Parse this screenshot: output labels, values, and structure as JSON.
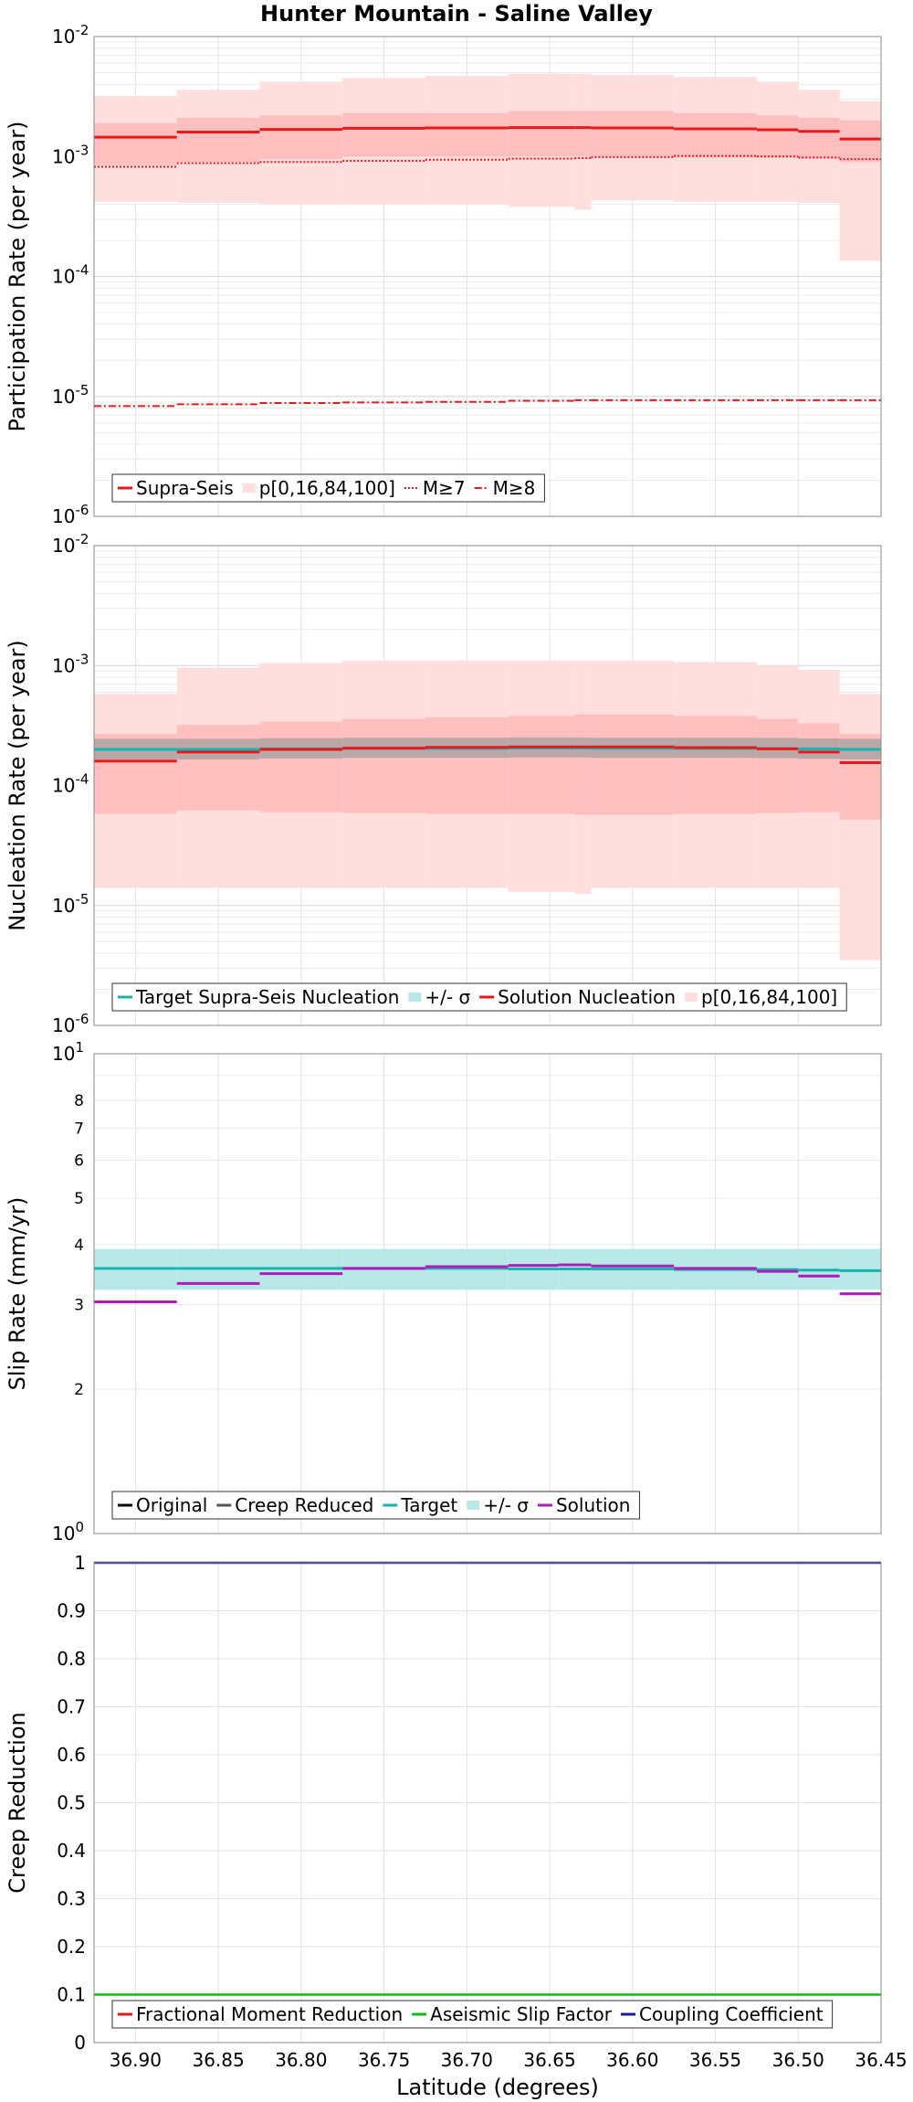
{
  "title": "Hunter Mountain - Saline Valley",
  "xlabel": "Latitude (degrees)",
  "x_ticks": [
    "36.90",
    "36.85",
    "36.80",
    "36.75",
    "36.70",
    "36.65",
    "36.60",
    "36.55",
    "36.50",
    "36.45"
  ],
  "colors": {
    "red": "#e8191c",
    "band_light": "#ffdede",
    "band_mid": "#ffbfbf",
    "grey": "#555555",
    "teal": "#1ab4b0",
    "teal_band": "#b8e9e8",
    "magenta": "#b21bbb",
    "green": "#11bb11",
    "navy": "#1a1a9e"
  },
  "chart_data": [
    {
      "type": "line",
      "name": "participation",
      "ylabel": "Participation Rate (per year)",
      "yscale": "log",
      "ylim": [
        1e-06,
        0.01
      ],
      "xlim": [
        36.925,
        36.45
      ],
      "y_ticks": [
        {
          "base": "10",
          "exp": "-6"
        },
        {
          "base": "10",
          "exp": "-5"
        },
        {
          "base": "10",
          "exp": "-4"
        },
        {
          "base": "10",
          "exp": "-3"
        },
        {
          "base": "10",
          "exp": "-2"
        }
      ],
      "x_edges": [
        36.925,
        36.875,
        36.825,
        36.775,
        36.725,
        36.675,
        36.635,
        36.625,
        36.575,
        36.525,
        36.5,
        36.475,
        36.45
      ],
      "bands": {
        "p0": [
          0.00042,
          0.00041,
          0.0004,
          0.0004,
          0.0004,
          0.00038,
          0.00036,
          0.00043,
          0.00042,
          0.00042,
          0.00041,
          0.000135
        ],
        "p16": [
          0.00085,
          0.0009,
          0.00095,
          0.001,
          0.001,
          0.001,
          0.001,
          0.001,
          0.00098,
          0.00098,
          0.00096,
          0.0009
        ],
        "p84": [
          0.0019,
          0.0021,
          0.0022,
          0.0023,
          0.0023,
          0.0024,
          0.0024,
          0.0024,
          0.0023,
          0.0022,
          0.0021,
          0.002
        ],
        "p100": [
          0.0032,
          0.0036,
          0.0042,
          0.0045,
          0.0047,
          0.0049,
          0.0049,
          0.0048,
          0.0046,
          0.0042,
          0.0036,
          0.0029
        ]
      },
      "series": [
        {
          "name": "Supra-Seis",
          "style": "solid",
          "values": [
            0.00145,
            0.0016,
            0.00168,
            0.00172,
            0.00173,
            0.00174,
            0.00174,
            0.00173,
            0.0017,
            0.00167,
            0.00162,
            0.0014
          ]
        },
        {
          "name": "M≥7",
          "style": "dotted",
          "values": [
            0.00082,
            0.00088,
            0.0009,
            0.00092,
            0.00094,
            0.00096,
            0.00097,
            0.00099,
            0.00101,
            0.001,
            0.00098,
            0.00095
          ]
        },
        {
          "name": "M≥8",
          "style": "dashdot",
          "values": [
            8.3e-06,
            8.6e-06,
            8.8e-06,
            8.9e-06,
            9e-06,
            9.2e-06,
            9.3e-06,
            9.3e-06,
            9.3e-06,
            9.3e-06,
            9.3e-06,
            9.3e-06
          ]
        }
      ],
      "legend": [
        {
          "label": "Supra-Seis",
          "kind": "line",
          "style": "solid",
          "color": "#e8191c"
        },
        {
          "label": "p[0,16,84,100]",
          "kind": "patch",
          "color": "#ffdede"
        },
        {
          "label": "M≥7",
          "kind": "line",
          "style": "dotted",
          "color": "#e8191c"
        },
        {
          "label": "M≥8",
          "kind": "line",
          "style": "dashdot",
          "color": "#e8191c"
        }
      ],
      "legend_position": "bottom-left"
    },
    {
      "type": "line",
      "name": "nucleation",
      "ylabel": "Nucleation Rate (per year)",
      "yscale": "log",
      "ylim": [
        1e-06,
        0.01
      ],
      "xlim": [
        36.925,
        36.45
      ],
      "y_ticks": [
        {
          "base": "10",
          "exp": "-6"
        },
        {
          "base": "10",
          "exp": "-5"
        },
        {
          "base": "10",
          "exp": "-4"
        },
        {
          "base": "10",
          "exp": "-3"
        },
        {
          "base": "10",
          "exp": "-2"
        }
      ],
      "x_edges": [
        36.925,
        36.875,
        36.825,
        36.775,
        36.725,
        36.675,
        36.635,
        36.625,
        36.575,
        36.525,
        36.5,
        36.475,
        36.45
      ],
      "bands": {
        "p0": [
          1.4e-05,
          1.4e-05,
          1.4e-05,
          1.4e-05,
          1.4e-05,
          1.3e-05,
          1.25e-05,
          1.4e-05,
          1.4e-05,
          1.4e-05,
          1.4e-05,
          3.5e-06
        ],
        "p16": [
          5.8e-05,
          6.2e-05,
          6e-05,
          5.9e-05,
          5.8e-05,
          5.8e-05,
          5.7e-05,
          5.7e-05,
          5.8e-05,
          5.9e-05,
          6e-05,
          5.2e-05
        ],
        "p84": [
          0.00027,
          0.00032,
          0.00034,
          0.00036,
          0.00037,
          0.00038,
          0.00039,
          0.00039,
          0.00038,
          0.00036,
          0.00033,
          0.00027
        ],
        "p100": [
          0.00058,
          0.00096,
          0.00105,
          0.0011,
          0.0011,
          0.0011,
          0.0011,
          0.0011,
          0.00107,
          0.001,
          0.00092,
          0.00058
        ]
      },
      "sigma_band": {
        "lower": [
          0.000165,
          0.000165,
          0.000168,
          0.00017,
          0.00017,
          0.000171,
          0.000171,
          0.00017,
          0.00017,
          0.000169,
          0.000167,
          0.000165
        ],
        "upper": [
          0.000245,
          0.000245,
          0.000248,
          0.00025,
          0.00025,
          0.000251,
          0.000251,
          0.00025,
          0.00025,
          0.000249,
          0.000247,
          0.000245
        ]
      },
      "series": [
        {
          "name": "Target Supra-Seis Nucleation",
          "style": "solid",
          "values": [
            0.0002,
            0.0002,
            0.000202,
            0.000204,
            0.000204,
            0.000205,
            0.000205,
            0.000204,
            0.000204,
            0.000203,
            0.000202,
            0.0002
          ]
        },
        {
          "name": "Solution Nucleation",
          "style": "solid",
          "values": [
            0.00016,
            0.00019,
            0.0002,
            0.000205,
            0.000208,
            0.00021,
            0.00021,
            0.00021,
            0.000207,
            0.000202,
            0.00019,
            0.000155
          ]
        }
      ],
      "legend": [
        {
          "label": "Target Supra-Seis Nucleation",
          "kind": "line",
          "style": "solid",
          "color": "#1ab4b0"
        },
        {
          "label": "+/- σ",
          "kind": "patch",
          "color": "#b8e9e8"
        },
        {
          "label": "Solution Nucleation",
          "kind": "line",
          "style": "solid",
          "color": "#e8191c"
        },
        {
          "label": "p[0,16,84,100]",
          "kind": "patch",
          "color": "#ffdede"
        }
      ],
      "legend_position": "bottom-left"
    },
    {
      "type": "line",
      "name": "slip",
      "ylabel": "Slip Rate (mm/yr)",
      "yscale": "log",
      "ylim": [
        1,
        10
      ],
      "xlim": [
        36.925,
        36.45
      ],
      "y_ticks": [
        {
          "base": "10",
          "exp": "0"
        },
        {
          "base": "10",
          "exp": "1"
        }
      ],
      "y_minor_ticks": [
        "2",
        "3",
        "4",
        "5",
        "6",
        "7",
        "8"
      ],
      "y_minor_values": [
        2,
        3,
        4,
        5,
        6,
        7,
        8
      ],
      "x_edges": [
        36.925,
        36.875,
        36.825,
        36.775,
        36.725,
        36.675,
        36.645,
        36.625,
        36.575,
        36.525,
        36.5,
        36.475,
        36.45
      ],
      "sigma_band": {
        "lower": [
          3.22,
          3.22,
          3.22,
          3.22,
          3.22,
          3.22,
          3.22,
          3.22,
          3.22,
          3.22,
          3.22,
          3.22
        ],
        "upper": [
          3.92,
          3.92,
          3.92,
          3.92,
          3.92,
          3.92,
          3.92,
          3.92,
          3.92,
          3.92,
          3.92,
          3.92
        ]
      },
      "series": [
        {
          "name": "Target",
          "style": "solid",
          "values": [
            3.57,
            3.57,
            3.57,
            3.57,
            3.57,
            3.56,
            3.56,
            3.56,
            3.55,
            3.55,
            3.54,
            3.53
          ]
        },
        {
          "name": "Solution",
          "style": "solid",
          "values": [
            3.04,
            3.32,
            3.48,
            3.57,
            3.6,
            3.62,
            3.63,
            3.61,
            3.57,
            3.52,
            3.44,
            3.16
          ]
        }
      ],
      "legend": [
        {
          "label": "Original",
          "kind": "line",
          "style": "solid",
          "color": "#000000"
        },
        {
          "label": "Creep Reduced",
          "kind": "line",
          "style": "solid",
          "color": "#555555"
        },
        {
          "label": "Target",
          "kind": "line",
          "style": "solid",
          "color": "#1ab4b0"
        },
        {
          "label": "+/- σ",
          "kind": "patch",
          "color": "#b8e9e8"
        },
        {
          "label": "Solution",
          "kind": "line",
          "style": "solid",
          "color": "#b21bbb"
        }
      ],
      "legend_position": "bottom-left"
    },
    {
      "type": "line",
      "name": "creep",
      "ylabel": "Creep Reduction",
      "yscale": "linear",
      "ylim": [
        0,
        1
      ],
      "xlim": [
        36.925,
        36.45
      ],
      "y_ticks": [
        "0",
        "0.1",
        "0.2",
        "0.3",
        "0.4",
        "0.5",
        "0.6",
        "0.7",
        "0.8",
        "0.9",
        "1"
      ],
      "series": [
        {
          "name": "Aseismic Slip Factor",
          "style": "solid",
          "values": [
            0.1
          ]
        },
        {
          "name": "Coupling Coefficient",
          "style": "solid",
          "values": [
            1.0
          ]
        }
      ],
      "legend": [
        {
          "label": "Fractional Moment Reduction",
          "kind": "line",
          "style": "solid",
          "color": "#e8191c"
        },
        {
          "label": "Aseismic Slip Factor",
          "kind": "line",
          "style": "solid",
          "color": "#11bb11"
        },
        {
          "label": "Coupling Coefficient",
          "kind": "line",
          "style": "solid",
          "color": "#1a1a9e"
        }
      ],
      "legend_position": "bottom-left"
    }
  ]
}
